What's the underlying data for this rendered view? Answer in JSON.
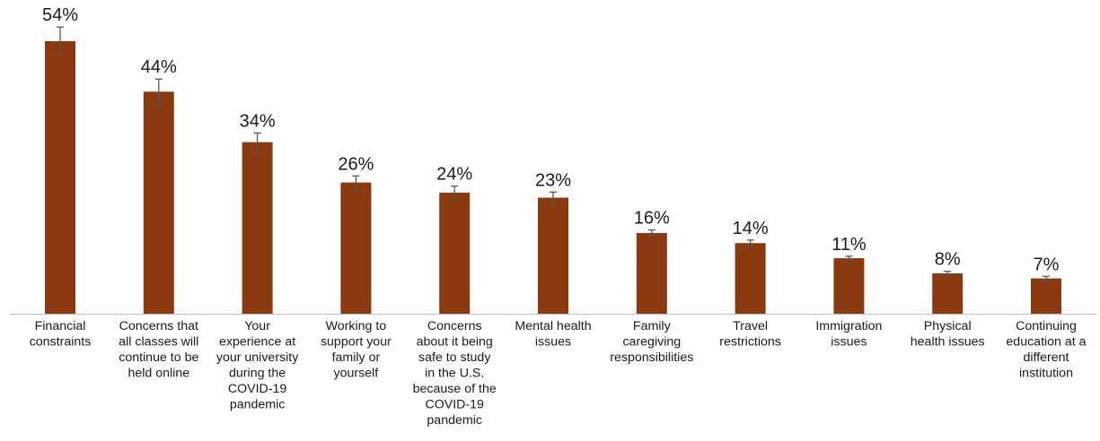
{
  "chart_data": {
    "type": "bar",
    "title": "",
    "xlabel": "",
    "ylabel": "",
    "ylim": [
      0,
      58
    ],
    "grid": false,
    "legend": "none",
    "bar_color": "#8B3A0F",
    "error_bar_color": "#555555",
    "axis_color": "#bfbfbf",
    "categories": [
      [
        "Financial",
        "constraints"
      ],
      [
        "Concerns that",
        "all classes will",
        "continue to be",
        "held online"
      ],
      [
        "Your",
        "experience at",
        "your university",
        "during the",
        "COVID-19",
        "pandemic"
      ],
      [
        "Working to",
        "support your",
        "family or",
        "yourself"
      ],
      [
        "Concerns",
        "about it being",
        "safe to study",
        "in the U.S.",
        "because of the",
        "COVID-19",
        "pandemic"
      ],
      [
        "Mental health",
        "issues"
      ],
      [
        "Family",
        "caregiving",
        "responsibilities"
      ],
      [
        "Travel",
        "restrictions"
      ],
      [
        "Immigration",
        "issues"
      ],
      [
        "Physical",
        "health issues"
      ],
      [
        "Continuing",
        "education at a",
        "different",
        "institution"
      ]
    ],
    "values": [
      54,
      44,
      34,
      26,
      24,
      23,
      16,
      14,
      11,
      8,
      7
    ],
    "value_labels": [
      "54%",
      "44%",
      "34%",
      "26%",
      "24%",
      "23%",
      "16%",
      "14%",
      "11%",
      "8%",
      "7%"
    ],
    "error_margin": [
      2.8,
      2.5,
      1.8,
      1.3,
      1.3,
      1.1,
      0.6,
      0.6,
      0.4,
      0.4,
      0.4
    ]
  }
}
